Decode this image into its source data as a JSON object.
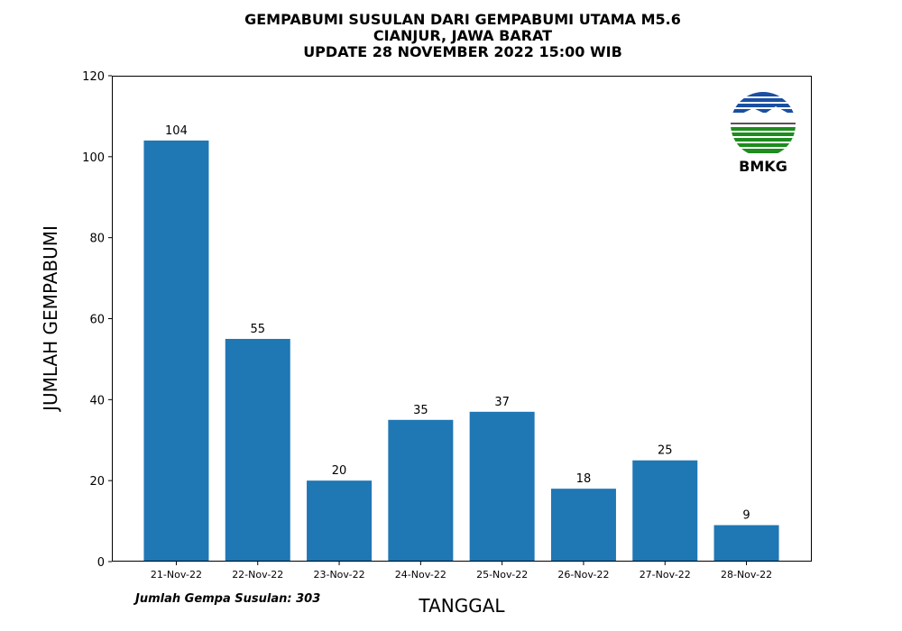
{
  "chart_data": {
    "type": "bar",
    "title": [
      "GEMPABUMI SUSULAN DARI GEMPABUMI UTAMA M5.6",
      "CIANJUR, JAWA BARAT",
      "UPDATE 28 NOVEMBER 2022 15:00 WIB"
    ],
    "categories": [
      "21-Nov-22",
      "22-Nov-22",
      "23-Nov-22",
      "24-Nov-22",
      "25-Nov-22",
      "26-Nov-22",
      "27-Nov-22",
      "28-Nov-22"
    ],
    "values": [
      104,
      55,
      20,
      35,
      37,
      18,
      25,
      9
    ],
    "xlabel": "TANGGAL",
    "ylabel": "JUMLAH GEMPABUMI",
    "ylim": [
      0,
      120
    ],
    "yticks": [
      0,
      20,
      40,
      60,
      80,
      100,
      120
    ],
    "grid": false,
    "bar_color": "#1f77b4",
    "annotation": "Jumlah Gempa Susulan: 303"
  },
  "logo": {
    "icon": "bmkg-logo-icon",
    "text": "BMKG",
    "colors": {
      "blue": "#1a4fa3",
      "green": "#1e8c1e"
    }
  }
}
